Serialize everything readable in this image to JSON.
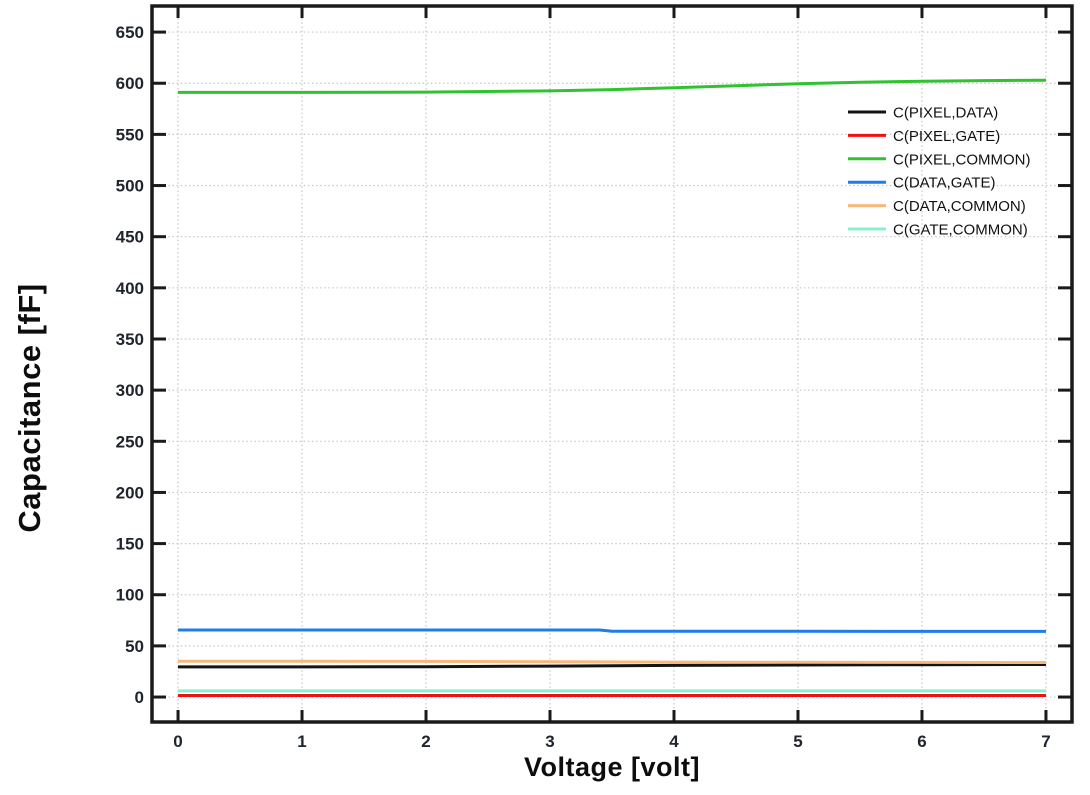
{
  "chart_data": {
    "type": "line",
    "title": "",
    "xlabel": "Voltage [volt]",
    "ylabel": "Capacitance [fF]",
    "xlim": [
      -0.21,
      7.21
    ],
    "ylim": [
      -24.4,
      675.5
    ],
    "x_ticks": [
      0,
      1,
      2,
      3,
      4,
      5,
      6,
      7
    ],
    "y_ticks": [
      0,
      50,
      100,
      150,
      200,
      250,
      300,
      350,
      400,
      450,
      500,
      550,
      600,
      650
    ],
    "grid": "dotted",
    "legend_position": "top-right-inside",
    "series": [
      {
        "name": "C(PIXEL,DATA)",
        "color": "#141414",
        "x": [
          0,
          1,
          2,
          3,
          4,
          5,
          6,
          7
        ],
        "values": [
          29.5,
          29.5,
          29.7,
          30.2,
          30.9,
          31.3,
          31.6,
          31.8
        ]
      },
      {
        "name": "C(PIXEL,GATE)",
        "color": "#ee1111",
        "x": [
          0,
          1,
          2,
          3,
          4,
          5,
          6,
          7
        ],
        "values": [
          1.5,
          1.5,
          1.5,
          1.5,
          1.5,
          1.5,
          1.5,
          1.5
        ]
      },
      {
        "name": "C(PIXEL,COMMON)",
        "color": "#2fc32f",
        "x": [
          0,
          1,
          2,
          3,
          3.5,
          4,
          4.5,
          5,
          5.5,
          6,
          6.5,
          7
        ],
        "values": [
          591,
          591,
          591.3,
          592.5,
          593.8,
          595.5,
          597.5,
          599.5,
          601,
          602,
          602.6,
          603
        ]
      },
      {
        "name": "C(DATA,GATE)",
        "color": "#1e7de8",
        "x": [
          0,
          1,
          2,
          3,
          3.4,
          3.5,
          4,
          5,
          6,
          7
        ],
        "values": [
          65.5,
          65.5,
          65.5,
          65.5,
          65.5,
          64.3,
          64.3,
          64.3,
          64.2,
          64.2
        ]
      },
      {
        "name": "C(DATA,COMMON)",
        "color": "#f6b97b",
        "x": [
          0,
          1,
          2,
          3,
          4,
          5,
          6,
          7
        ],
        "values": [
          35,
          34.9,
          34.8,
          34.5,
          34.2,
          34,
          33.9,
          33.8
        ]
      },
      {
        "name": "C(GATE,COMMON)",
        "color": "#87f0d0",
        "x": [
          0,
          1,
          2,
          3,
          4,
          5,
          6,
          7
        ],
        "values": [
          6,
          6,
          6,
          6,
          6,
          6,
          6,
          6
        ]
      }
    ]
  },
  "style": {
    "background": "#ffffff",
    "axis_color": "#1a1a1a",
    "grid_color": "#c6c6c6",
    "tick_label_color": "#20242c",
    "legend_text_color": "#111111"
  }
}
